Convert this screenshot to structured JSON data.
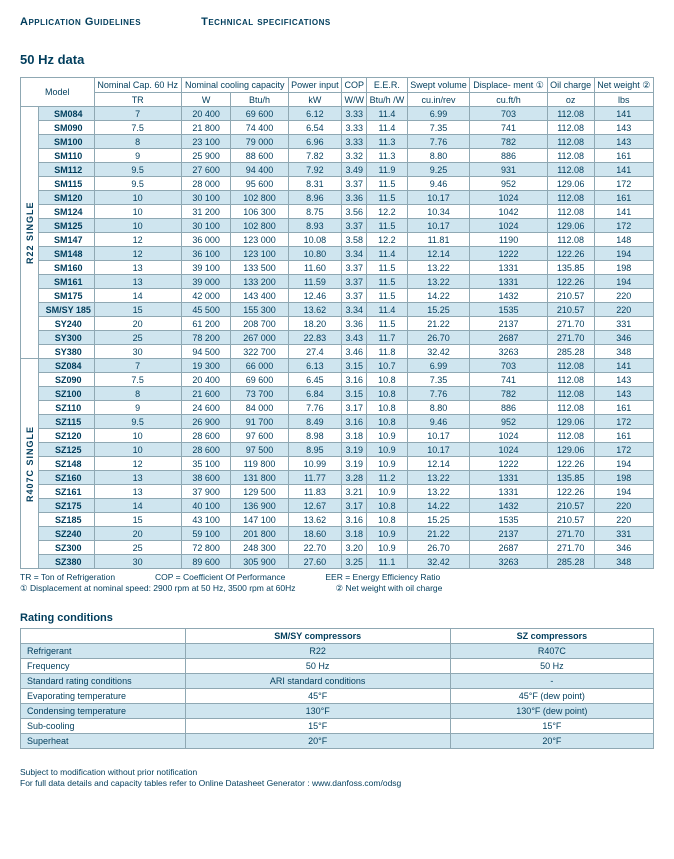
{
  "header": {
    "left": "Application Guidelines",
    "right": "Technical specifications"
  },
  "title50": "50 Hz data",
  "cols": {
    "model": "Model",
    "nomcap": "Nominal Cap. 60 Hz",
    "cooling": "Nominal cooling capacity",
    "power": "Power input",
    "cop": "COP",
    "eer": "E.E.R.",
    "swept": "Swept volume",
    "disp": "Displace-  ment ①",
    "oil": "Oil charge",
    "net": "Net weight ②",
    "u_tr": "TR",
    "u_w": "W",
    "u_btuh": "Btu/h",
    "u_kw": "kW",
    "u_ww": "W/W",
    "u_btuhw": "Btu/h /W",
    "u_cuin": "cu.in/rev",
    "u_cuft": "cu.ft/h",
    "u_oz": "oz",
    "u_lbs": "lbs"
  },
  "groups": [
    {
      "label": "R22  SINGLE",
      "rows": [
        [
          "SM084",
          "7",
          "20 400",
          "69 600",
          "6.12",
          "3.33",
          "11.4",
          "6.99",
          "703",
          "112.08",
          "141",
          true
        ],
        [
          "SM090",
          "7.5",
          "21 800",
          "74 400",
          "6.54",
          "3.33",
          "11.4",
          "7.35",
          "741",
          "112.08",
          "143",
          false
        ],
        [
          "SM100",
          "8",
          "23 100",
          "79 000",
          "6.96",
          "3.33",
          "11.3",
          "7.76",
          "782",
          "112.08",
          "143",
          true
        ],
        [
          "SM110",
          "9",
          "25 900",
          "88 600",
          "7.82",
          "3.32",
          "11.3",
          "8.80",
          "886",
          "112.08",
          "161",
          false
        ],
        [
          "SM112",
          "9.5",
          "27 600",
          "94 400",
          "7.92",
          "3.49",
          "11.9",
          "9.25",
          "931",
          "112.08",
          "141",
          true
        ],
        [
          "SM115",
          "9.5",
          "28 000",
          "95 600",
          "8.31",
          "3.37",
          "11.5",
          "9.46",
          "952",
          "129.06",
          "172",
          false
        ],
        [
          "SM120",
          "10",
          "30 100",
          "102 800",
          "8.96",
          "3.36",
          "11.5",
          "10.17",
          "1024",
          "112.08",
          "161",
          true
        ],
        [
          "SM124",
          "10",
          "31 200",
          "106 300",
          "8.75",
          "3.56",
          "12.2",
          "10.34",
          "1042",
          "112.08",
          "141",
          false
        ],
        [
          "SM125",
          "10",
          "30 100",
          "102 800",
          "8.93",
          "3.37",
          "11.5",
          "10.17",
          "1024",
          "129.06",
          "172",
          true
        ],
        [
          "SM147",
          "12",
          "36 000",
          "123 000",
          "10.08",
          "3.58",
          "12.2",
          "11.81",
          "1190",
          "112.08",
          "148",
          false
        ],
        [
          "SM148",
          "12",
          "36 100",
          "123 100",
          "10.80",
          "3.34",
          "11.4",
          "12.14",
          "1222",
          "122.26",
          "194",
          true
        ],
        [
          "SM160",
          "13",
          "39 100",
          "133 500",
          "11.60",
          "3.37",
          "11.5",
          "13.22",
          "1331",
          "135.85",
          "198",
          false
        ],
        [
          "SM161",
          "13",
          "39 000",
          "133 200",
          "11.59",
          "3.37",
          "11.5",
          "13.22",
          "1331",
          "122.26",
          "194",
          true
        ],
        [
          "SM175",
          "14",
          "42 000",
          "143 400",
          "12.46",
          "3.37",
          "11.5",
          "14.22",
          "1432",
          "210.57",
          "220",
          false
        ],
        [
          "SM/SY 185",
          "15",
          "45 500",
          "155 300",
          "13.62",
          "3.34",
          "11.4",
          "15.25",
          "1535",
          "210.57",
          "220",
          true
        ],
        [
          "SY240",
          "20",
          "61 200",
          "208 700",
          "18.20",
          "3.36",
          "11.5",
          "21.22",
          "2137",
          "271.70",
          "331",
          false
        ],
        [
          "SY300",
          "25",
          "78 200",
          "267 000",
          "22.83",
          "3.43",
          "11.7",
          "26.70",
          "2687",
          "271.70",
          "346",
          true
        ],
        [
          "SY380",
          "30",
          "94 500",
          "322 700",
          "27.4",
          "3.46",
          "11.8",
          "32.42",
          "3263",
          "285.28",
          "348",
          false
        ]
      ]
    },
    {
      "label": "R407C  SINGLE",
      "rows": [
        [
          "SZ084",
          "7",
          "19 300",
          "66 000",
          "6.13",
          "3.15",
          "10.7",
          "6.99",
          "703",
          "112.08",
          "141",
          true
        ],
        [
          "SZ090",
          "7.5",
          "20 400",
          "69 600",
          "6.45",
          "3.16",
          "10.8",
          "7.35",
          "741",
          "112.08",
          "143",
          false
        ],
        [
          "SZ100",
          "8",
          "21 600",
          "73 700",
          "6.84",
          "3.15",
          "10.8",
          "7.76",
          "782",
          "112.08",
          "143",
          true
        ],
        [
          "SZ110",
          "9",
          "24 600",
          "84 000",
          "7.76",
          "3.17",
          "10.8",
          "8.80",
          "886",
          "112.08",
          "161",
          false
        ],
        [
          "SZ115",
          "9.5",
          "26 900",
          "91 700",
          "8.49",
          "3.16",
          "10.8",
          "9.46",
          "952",
          "129.06",
          "172",
          true
        ],
        [
          "SZ120",
          "10",
          "28 600",
          "97 600",
          "8.98",
          "3.18",
          "10.9",
          "10.17",
          "1024",
          "112.08",
          "161",
          false
        ],
        [
          "SZ125",
          "10",
          "28 600",
          "97 500",
          "8.95",
          "3.19",
          "10.9",
          "10.17",
          "1024",
          "129.06",
          "172",
          true
        ],
        [
          "SZ148",
          "12",
          "35 100",
          "119 800",
          "10.99",
          "3.19",
          "10.9",
          "12.14",
          "1222",
          "122.26",
          "194",
          false
        ],
        [
          "SZ160",
          "13",
          "38 600",
          "131 800",
          "11.77",
          "3.28",
          "11.2",
          "13.22",
          "1331",
          "135.85",
          "198",
          true
        ],
        [
          "SZ161",
          "13",
          "37 900",
          "129 500",
          "11.83",
          "3.21",
          "10.9",
          "13.22",
          "1331",
          "122.26",
          "194",
          false
        ],
        [
          "SZ175",
          "14",
          "40 100",
          "136 900",
          "12.67",
          "3.17",
          "10.8",
          "14.22",
          "1432",
          "210.57",
          "220",
          true
        ],
        [
          "SZ185",
          "15",
          "43 100",
          "147 100",
          "13.62",
          "3.16",
          "10.8",
          "15.25",
          "1535",
          "210.57",
          "220",
          false
        ],
        [
          "SZ240",
          "20",
          "59 100",
          "201 800",
          "18.60",
          "3.18",
          "10.9",
          "21.22",
          "2137",
          "271.70",
          "331",
          true
        ],
        [
          "SZ300",
          "25",
          "72 800",
          "248 300",
          "22.70",
          "3.20",
          "10.9",
          "26.70",
          "2687",
          "271.70",
          "346",
          false
        ],
        [
          "SZ380",
          "30",
          "89 600",
          "305 900",
          "27.60",
          "3.25",
          "11.1",
          "32.42",
          "3263",
          "285.28",
          "348",
          true
        ]
      ]
    }
  ],
  "foot": {
    "tr": "TR = Ton of Refrigeration",
    "cop": "COP = Coefficient Of Performance",
    "eer": "EER = Energy Efficiency Ratio",
    "d1": "① Displacement at nominal speed: 2900 rpm at 50 Hz, 3500 rpm at 60Hz",
    "d2": "② Net weight with oil charge"
  },
  "cond": {
    "title": "Rating conditions",
    "h1": "SM/SY compressors",
    "h2": "SZ compressors",
    "rows": [
      [
        "Refrigerant",
        "R22",
        "R407C",
        true
      ],
      [
        "Frequency",
        "50 Hz",
        "50 Hz",
        false
      ],
      [
        "Standard rating conditions",
        "ARI standard conditions",
        "-",
        true
      ],
      [
        "Evaporating temperature",
        "45°F",
        "45°F (dew point)",
        false
      ],
      [
        "Condensing temperature",
        "130°F",
        "130°F (dew point)",
        true
      ],
      [
        "Sub-cooling",
        "15°F",
        "15°F",
        false
      ],
      [
        "Superheat",
        "20°F",
        "20°F",
        true
      ]
    ]
  },
  "footer": {
    "l1": "Subject to modification without prior notification",
    "l2": "For full data details and capacity tables refer to Online Datasheet Generator : www.danfoss.com/odsg"
  }
}
